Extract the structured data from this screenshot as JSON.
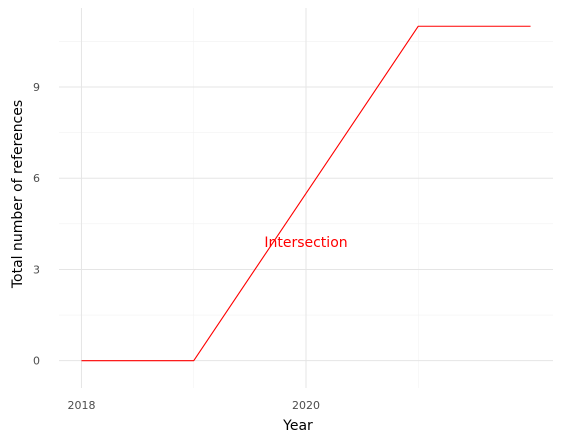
{
  "chart_data": {
    "type": "line",
    "x": [
      2018,
      2019,
      2020,
      2021,
      2022
    ],
    "series": [
      {
        "values": [
          0,
          0,
          5.5,
          11,
          11
        ],
        "color": "#ff0000"
      }
    ],
    "xlabel": "Year",
    "ylabel": "Total number of references",
    "xlim": [
      2017.8,
      2022.2
    ],
    "ylim": [
      -0.9,
      11.6
    ],
    "xticks": [
      2018,
      2020
    ],
    "xtick_labels": [
      "2018",
      "2020"
    ],
    "yticks": [
      0,
      3,
      6,
      9
    ],
    "ytick_labels": [
      "0",
      "3",
      "6",
      "9"
    ],
    "x_minor_gridlines": [
      2019,
      2021
    ],
    "y_minor_gridlines": [
      1.5,
      4.5,
      7.5,
      10.5
    ],
    "grid": true,
    "annotation": {
      "text": "Intersection",
      "x": 2020,
      "y": 3.9,
      "color": "#ff0000"
    }
  }
}
